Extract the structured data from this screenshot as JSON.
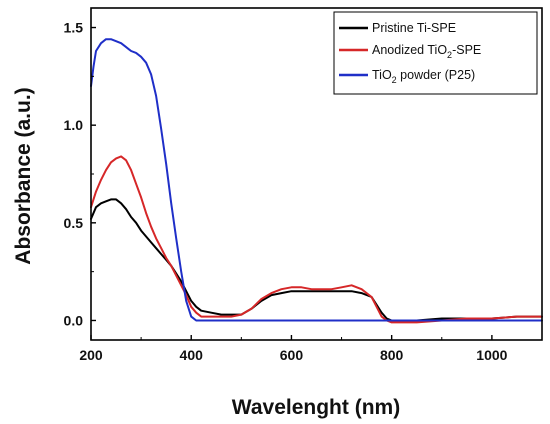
{
  "chart_data": {
    "type": "line",
    "title": "",
    "xlabel": "Wavelenght (nm)",
    "ylabel": "Absorbance (a.u.)",
    "xlim": [
      200,
      1100
    ],
    "ylim": [
      -0.1,
      1.6
    ],
    "xticks": [
      200,
      400,
      600,
      800,
      1000
    ],
    "xtick_labels": [
      "200",
      "400",
      "600",
      "800",
      "1000"
    ],
    "yticks": [
      0.0,
      0.5,
      1.0,
      1.5
    ],
    "ytick_labels": [
      "0.0",
      "0.5",
      "1.0",
      "1.5"
    ],
    "grid": false,
    "legend_position": "top-right",
    "series": [
      {
        "name": "Pristine Ti-SPE",
        "color": "#000000",
        "x": [
          200,
          210,
          220,
          230,
          240,
          250,
          260,
          270,
          280,
          290,
          300,
          310,
          320,
          330,
          340,
          350,
          360,
          370,
          380,
          390,
          400,
          410,
          420,
          440,
          460,
          480,
          500,
          520,
          540,
          560,
          580,
          600,
          620,
          640,
          660,
          680,
          700,
          720,
          740,
          760,
          770,
          780,
          790,
          800,
          850,
          900,
          950,
          1000,
          1050,
          1100
        ],
        "y": [
          0.52,
          0.58,
          0.6,
          0.61,
          0.62,
          0.62,
          0.6,
          0.57,
          0.53,
          0.5,
          0.46,
          0.43,
          0.4,
          0.37,
          0.34,
          0.31,
          0.28,
          0.24,
          0.2,
          0.15,
          0.1,
          0.07,
          0.05,
          0.04,
          0.03,
          0.03,
          0.03,
          0.06,
          0.1,
          0.13,
          0.14,
          0.15,
          0.15,
          0.15,
          0.15,
          0.15,
          0.15,
          0.15,
          0.14,
          0.12,
          0.08,
          0.04,
          0.01,
          0.0,
          0.0,
          0.01,
          0.01,
          0.01,
          0.02,
          0.02
        ]
      },
      {
        "name": "Anodized TiO2-SPE",
        "name_main": "Anodized TiO",
        "name_sub": "2",
        "name_tail": "-SPE",
        "color": "#d62728",
        "x": [
          200,
          210,
          220,
          230,
          240,
          250,
          260,
          270,
          280,
          290,
          300,
          310,
          320,
          330,
          340,
          350,
          360,
          370,
          380,
          390,
          400,
          410,
          420,
          440,
          460,
          480,
          500,
          520,
          540,
          560,
          580,
          600,
          620,
          640,
          660,
          680,
          700,
          720,
          740,
          760,
          770,
          780,
          790,
          800,
          850,
          900,
          950,
          1000,
          1050,
          1100
        ],
        "y": [
          0.58,
          0.66,
          0.72,
          0.77,
          0.81,
          0.83,
          0.84,
          0.82,
          0.77,
          0.7,
          0.63,
          0.55,
          0.48,
          0.42,
          0.37,
          0.32,
          0.28,
          0.23,
          0.18,
          0.13,
          0.07,
          0.04,
          0.02,
          0.02,
          0.02,
          0.02,
          0.03,
          0.06,
          0.11,
          0.14,
          0.16,
          0.17,
          0.17,
          0.16,
          0.16,
          0.16,
          0.17,
          0.18,
          0.16,
          0.12,
          0.07,
          0.02,
          0.0,
          -0.01,
          -0.01,
          0.0,
          0.01,
          0.01,
          0.02,
          0.02
        ]
      },
      {
        "name": "TiO2 powder (P25)",
        "name_main": "TiO",
        "name_sub": "2",
        "name_tail": " powder (P25)",
        "color": "#1f2fc8",
        "x": [
          200,
          205,
          210,
          220,
          230,
          240,
          250,
          260,
          270,
          280,
          290,
          300,
          310,
          320,
          330,
          340,
          350,
          360,
          370,
          380,
          390,
          400,
          410,
          420,
          440,
          500,
          600,
          700,
          800,
          900,
          1000,
          1100
        ],
        "y": [
          1.2,
          1.3,
          1.38,
          1.42,
          1.44,
          1.44,
          1.43,
          1.42,
          1.4,
          1.38,
          1.37,
          1.35,
          1.32,
          1.26,
          1.15,
          0.98,
          0.8,
          0.6,
          0.42,
          0.25,
          0.1,
          0.02,
          0.0,
          0.0,
          0.0,
          0.0,
          0.0,
          0.0,
          0.0,
          0.0,
          0.0,
          0.0
        ]
      }
    ]
  }
}
